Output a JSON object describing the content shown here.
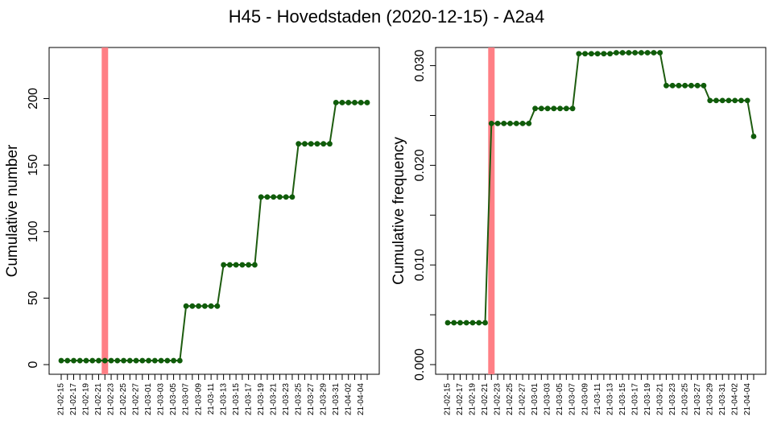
{
  "title": "H45 - Hovedstaden (2020-12-15) - A2a4",
  "colors": {
    "line": "#1d5c0f",
    "point": "#0f5c0a",
    "vline": "#ff7f85",
    "axis": "#000000"
  },
  "chart_data": [
    {
      "type": "line",
      "ylabel": "Cumulative number",
      "ylim": [
        0,
        236
      ],
      "yticks": [
        0,
        50,
        100,
        150,
        200
      ],
      "ytick_labels": [
        "0",
        "50",
        "100",
        "150",
        "200"
      ],
      "xtick_labels": [
        "21-02-15",
        "21-02-17",
        "21-02-19",
        "21-02-21",
        "21-02-23",
        "21-02-25",
        "21-02-27",
        "21-03-01",
        "21-03-03",
        "21-03-05",
        "21-03-07",
        "21-03-09",
        "21-03-11",
        "21-03-13",
        "21-03-15",
        "21-03-17",
        "21-03-19",
        "21-03-21",
        "21-03-23",
        "21-03-25",
        "21-03-27",
        "21-03-29",
        "21-03-31",
        "21-04-02",
        "21-04-04"
      ],
      "vline_x": "21-02-22",
      "x": [
        "21-02-15",
        "21-02-16",
        "21-02-17",
        "21-02-18",
        "21-02-19",
        "21-02-20",
        "21-02-21",
        "21-02-22",
        "21-02-23",
        "21-02-24",
        "21-02-25",
        "21-02-26",
        "21-02-27",
        "21-02-28",
        "21-03-01",
        "21-03-02",
        "21-03-03",
        "21-03-04",
        "21-03-05",
        "21-03-06",
        "21-03-07",
        "21-03-08",
        "21-03-09",
        "21-03-10",
        "21-03-11",
        "21-03-12",
        "21-03-13",
        "21-03-14",
        "21-03-15",
        "21-03-16",
        "21-03-17",
        "21-03-18",
        "21-03-19",
        "21-03-20",
        "21-03-21",
        "21-03-22",
        "21-03-23",
        "21-03-24",
        "21-03-25",
        "21-03-26",
        "21-03-27",
        "21-03-28",
        "21-03-29",
        "21-03-30",
        "21-03-31",
        "21-04-01",
        "21-04-02",
        "21-04-03",
        "21-04-04",
        "21-04-05"
      ],
      "series": [
        {
          "values": [
            3,
            3,
            3,
            3,
            3,
            3,
            3,
            3,
            3,
            3,
            3,
            3,
            3,
            3,
            3,
            3,
            3,
            3,
            3,
            3,
            44,
            44,
            44,
            44,
            44,
            44,
            75,
            75,
            75,
            75,
            75,
            75,
            126,
            126,
            126,
            126,
            126,
            126,
            166,
            166,
            166,
            166,
            166,
            166,
            197,
            197,
            197,
            197,
            197,
            197
          ]
        }
      ]
    },
    {
      "type": "line",
      "ylabel": "Cumulative frequency",
      "ylim": [
        0,
        0.0315
      ],
      "yticks": [
        0,
        0.01,
        0.02,
        0.03
      ],
      "ytick_labels": [
        "0.000",
        "0.010",
        "0.020",
        "0.030"
      ],
      "minor_yticks": [
        0.005,
        0.015,
        0.025
      ],
      "xtick_labels": [
        "21-02-15",
        "21-02-17",
        "21-02-19",
        "21-02-21",
        "21-02-23",
        "21-02-25",
        "21-02-27",
        "21-03-01",
        "21-03-03",
        "21-03-05",
        "21-03-07",
        "21-03-09",
        "21-03-11",
        "21-03-13",
        "21-03-15",
        "21-03-17",
        "21-03-19",
        "21-03-21",
        "21-03-23",
        "21-03-25",
        "21-03-27",
        "21-03-29",
        "21-03-31",
        "21-04-02",
        "21-04-04"
      ],
      "vline_x": "21-02-22",
      "x": [
        "21-02-15",
        "21-02-16",
        "21-02-17",
        "21-02-18",
        "21-02-19",
        "21-02-20",
        "21-02-21",
        "21-02-22",
        "21-02-23",
        "21-02-24",
        "21-02-25",
        "21-02-26",
        "21-02-27",
        "21-02-28",
        "21-03-01",
        "21-03-02",
        "21-03-03",
        "21-03-04",
        "21-03-05",
        "21-03-06",
        "21-03-07",
        "21-03-08",
        "21-03-09",
        "21-03-10",
        "21-03-11",
        "21-03-12",
        "21-03-13",
        "21-03-14",
        "21-03-15",
        "21-03-16",
        "21-03-17",
        "21-03-18",
        "21-03-19",
        "21-03-20",
        "21-03-21",
        "21-03-22",
        "21-03-23",
        "21-03-24",
        "21-03-25",
        "21-03-26",
        "21-03-27",
        "21-03-28",
        "21-03-29",
        "21-03-30",
        "21-03-31",
        "21-04-01",
        "21-04-02",
        "21-04-03",
        "21-04-04",
        "21-04-05"
      ],
      "series": [
        {
          "values": [
            0.0042,
            0.0042,
            0.0042,
            0.0042,
            0.0042,
            0.0042,
            0.0042,
            0.0242,
            0.0242,
            0.0242,
            0.0242,
            0.0242,
            0.0242,
            0.0242,
            0.0257,
            0.0257,
            0.0257,
            0.0257,
            0.0257,
            0.0257,
            0.0257,
            0.0312,
            0.0312,
            0.0312,
            0.0312,
            0.0312,
            0.0312,
            0.0313,
            0.0313,
            0.0313,
            0.0313,
            0.0313,
            0.0313,
            0.0313,
            0.0313,
            0.028,
            0.028,
            0.028,
            0.028,
            0.028,
            0.028,
            0.028,
            0.0265,
            0.0265,
            0.0265,
            0.0265,
            0.0265,
            0.0265,
            0.0265,
            0.0229
          ]
        }
      ]
    }
  ]
}
